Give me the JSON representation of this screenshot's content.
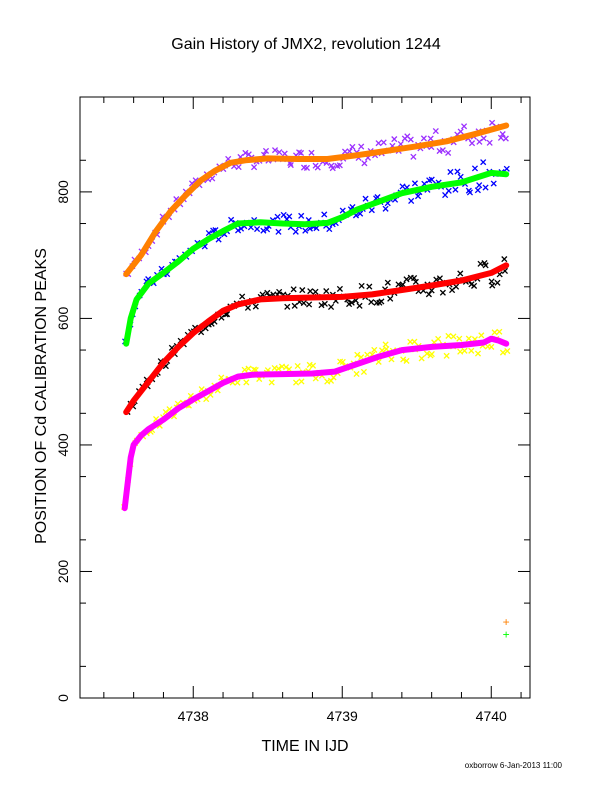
{
  "chart_data": {
    "type": "scatter",
    "title": "Gain History of JMX2, revolution 1244",
    "xlabel": "TIME IN IJD",
    "ylabel": "POSITION OF Cd CALIBRATION PEAKS",
    "xlim": [
      4737.24,
      4740.26
    ],
    "ylim": [
      0,
      950
    ],
    "x_ticks": [
      4738,
      4739,
      4740
    ],
    "x_tick_labels": [
      "4738",
      "4739",
      "4740"
    ],
    "y_ticks": [
      0,
      200,
      400,
      600,
      800
    ],
    "y_tick_labels": [
      "0",
      "200",
      "400",
      "600",
      "800"
    ],
    "grid": false,
    "legend": "none",
    "series": [
      {
        "color": "#ff8000",
        "marker": "line",
        "point_color": "#9b30ff",
        "x": [
          4737.55,
          4737.65,
          4737.75,
          4737.85,
          4737.95,
          4738.05,
          4738.15,
          4738.25,
          4738.35,
          4738.5,
          4738.7,
          4738.9,
          4739.1,
          4739.3,
          4739.5,
          4739.7,
          4739.9,
          4740.1
        ],
        "y": [
          670,
          700,
          738,
          770,
          795,
          818,
          834,
          846,
          850,
          853,
          852,
          852,
          858,
          865,
          872,
          880,
          892,
          905
        ]
      },
      {
        "color": "#00ff00",
        "marker": "line",
        "point_color": "#0000ff",
        "x": [
          4737.55,
          4737.58,
          4737.62,
          4737.7,
          4737.8,
          4737.9,
          4738.0,
          4738.1,
          4738.2,
          4738.3,
          4738.45,
          4738.6,
          4738.75,
          4738.9,
          4739.0,
          4739.1,
          4739.25,
          4739.4,
          4739.6,
          4739.8,
          4740.0,
          4740.1
        ],
        "y": [
          560,
          600,
          630,
          655,
          672,
          690,
          710,
          725,
          738,
          750,
          752,
          750,
          749,
          751,
          760,
          772,
          785,
          798,
          808,
          815,
          830,
          828
        ]
      },
      {
        "color": "#ff0000",
        "marker": "line",
        "point_color": "#000000",
        "x": [
          4737.55,
          4737.6,
          4737.7,
          4737.8,
          4737.9,
          4738.0,
          4738.1,
          4738.2,
          4738.3,
          4738.45,
          4738.6,
          4738.8,
          4739.0,
          4739.2,
          4739.4,
          4739.6,
          4739.8,
          4740.0,
          4740.1
        ],
        "y": [
          452,
          470,
          500,
          530,
          555,
          577,
          595,
          612,
          622,
          630,
          632,
          633,
          634,
          638,
          645,
          652,
          660,
          672,
          684
        ]
      },
      {
        "color": "#ff00ff",
        "marker": "line",
        "point_color": "#ffff00",
        "x": [
          4737.54,
          4737.56,
          4737.58,
          4737.6,
          4737.65,
          4737.7,
          4737.8,
          4737.9,
          4738.0,
          4738.1,
          4738.2,
          4738.3,
          4738.4,
          4738.6,
          4738.8,
          4738.95,
          4739.1,
          4739.25,
          4739.4,
          4739.6,
          4739.8,
          4739.95,
          4740.0,
          4740.05,
          4740.1
        ],
        "y": [
          300,
          340,
          380,
          400,
          415,
          425,
          440,
          458,
          472,
          485,
          498,
          508,
          511,
          512,
          513,
          516,
          528,
          540,
          550,
          555,
          558,
          562,
          568,
          565,
          560
        ]
      }
    ],
    "annotations": [
      {
        "x": 4740.1,
        "y": 120,
        "text": "+",
        "color": "#ff8000"
      },
      {
        "x": 4740.1,
        "y": 100,
        "text": "+",
        "color": "#00ff00"
      }
    ],
    "footer": "oxborrow 6-Jan-2013 11:00"
  }
}
